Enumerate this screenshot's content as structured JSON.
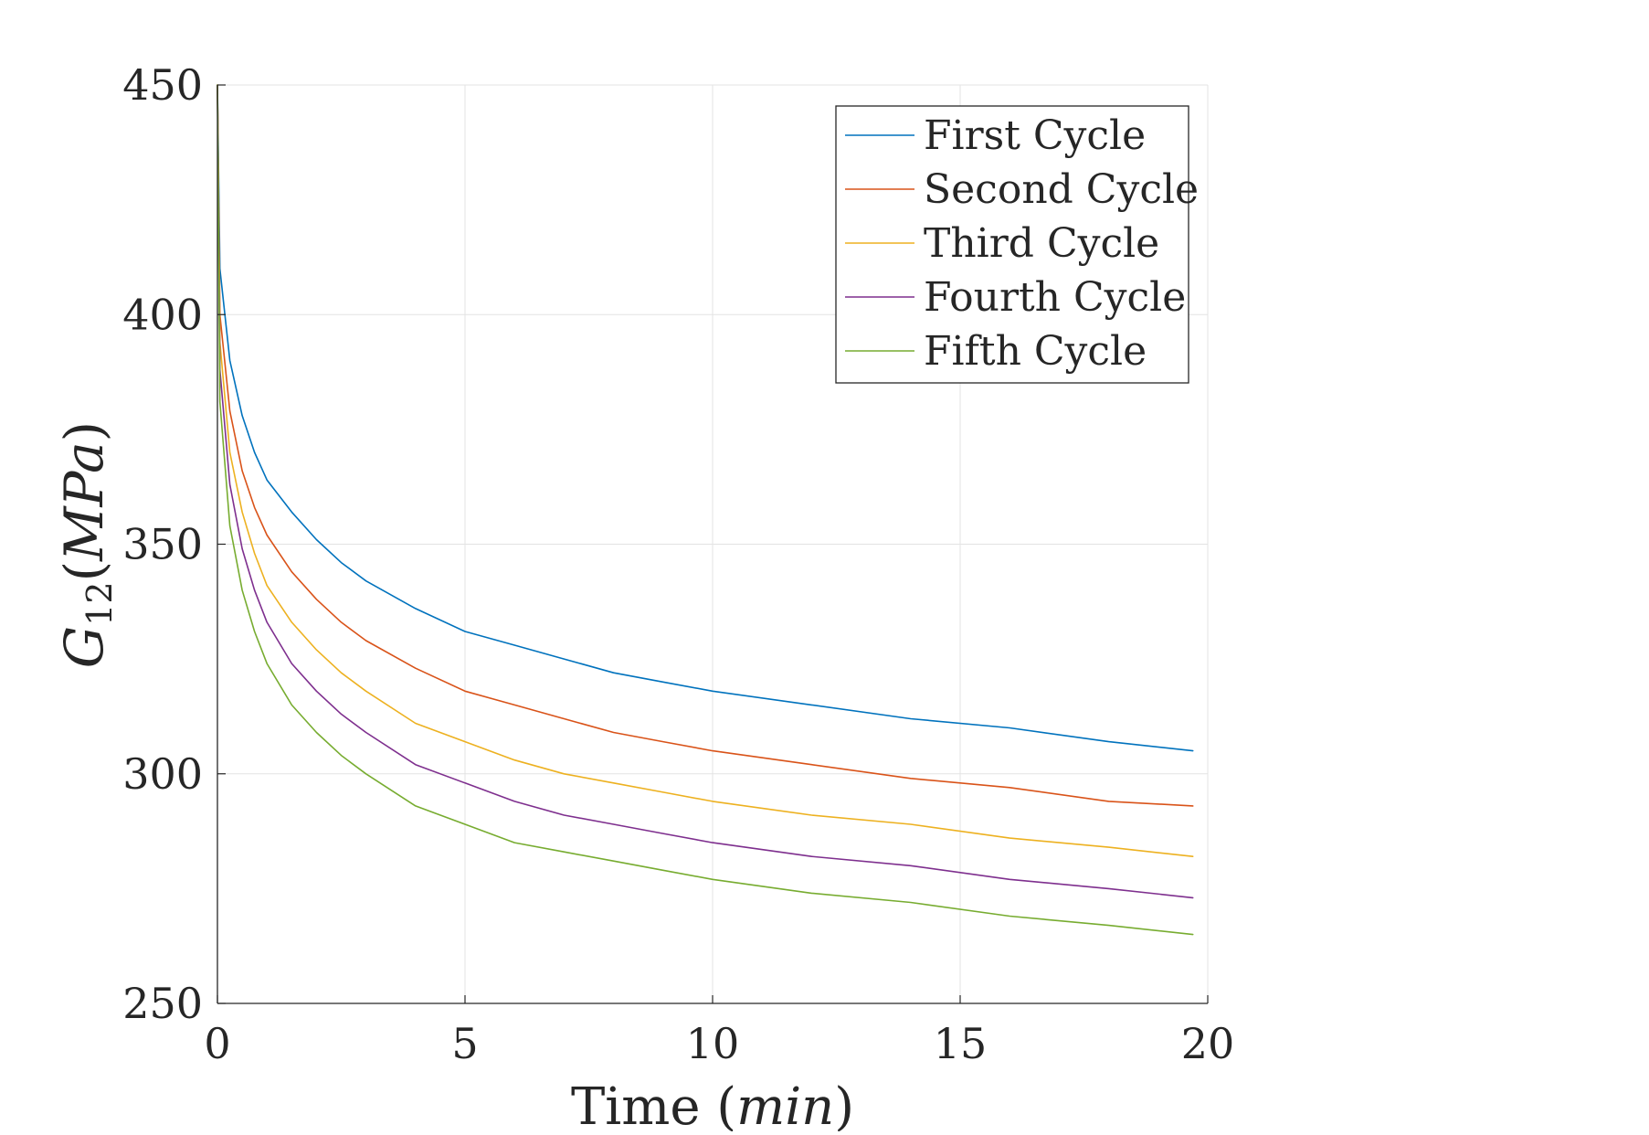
{
  "chart_data": {
    "type": "line",
    "title": "",
    "xlabel": "Time",
    "xlabel_unit": "min",
    "ylabel_base": "G",
    "ylabel_sub": "12",
    "ylabel_unit": "MPa",
    "xlim": [
      0,
      20
    ],
    "ylim": [
      250,
      450
    ],
    "xticks": [
      0,
      5,
      10,
      15,
      20
    ],
    "yticks": [
      250,
      300,
      350,
      400,
      450
    ],
    "grid": true,
    "legend_position": "top-right",
    "x": [
      0,
      0.05,
      0.25,
      0.5,
      0.75,
      1,
      1.5,
      2,
      2.5,
      3,
      4,
      5,
      6,
      7,
      8,
      9,
      10,
      12,
      14,
      16,
      18,
      19.7
    ],
    "series": [
      {
        "name": "First Cycle",
        "color": "#0072BD",
        "values": [
          450,
          410,
          390,
          378,
          370,
          364,
          357,
          351,
          346,
          342,
          336,
          331,
          328,
          325,
          322,
          320,
          318,
          315,
          312,
          310,
          307,
          305
        ]
      },
      {
        "name": "Second Cycle",
        "color": "#D95319",
        "values": [
          450,
          400,
          379,
          366,
          358,
          352,
          344,
          338,
          333,
          329,
          323,
          318,
          315,
          312,
          309,
          307,
          305,
          302,
          299,
          297,
          294,
          293
        ]
      },
      {
        "name": "Third Cycle",
        "color": "#EDB120",
        "values": [
          450,
          394,
          370,
          357,
          348,
          341,
          333,
          327,
          322,
          318,
          311,
          307,
          303,
          300,
          298,
          296,
          294,
          291,
          289,
          286,
          284,
          282
        ]
      },
      {
        "name": "Fourth Cycle",
        "color": "#7E2F8E",
        "values": [
          450,
          388,
          363,
          349,
          340,
          333,
          324,
          318,
          313,
          309,
          302,
          298,
          294,
          291,
          289,
          287,
          285,
          282,
          280,
          277,
          275,
          273
        ]
      },
      {
        "name": "Fifth Cycle",
        "color": "#77AC30",
        "values": [
          450,
          381,
          354,
          340,
          331,
          324,
          315,
          309,
          304,
          300,
          293,
          289,
          285,
          283,
          281,
          279,
          277,
          274,
          272,
          269,
          267,
          265
        ]
      }
    ]
  }
}
